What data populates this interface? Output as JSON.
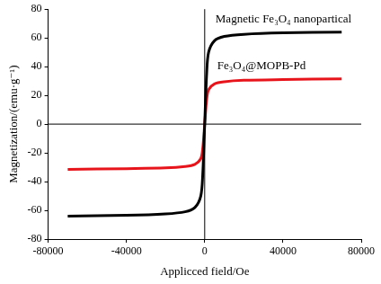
{
  "chart_data": {
    "type": "line",
    "x_label": "Applicced field/Oe",
    "y_label": "Magnetization/(emu·g⁻¹)",
    "x": [
      -70000,
      -40000,
      -20000,
      -10000,
      -5000,
      -2000,
      -1000,
      0,
      1000,
      2000,
      5000,
      10000,
      20000,
      40000,
      70000
    ],
    "series": [
      {
        "name": "Magnetic Fe₃O₄ nanopartical",
        "color": "#000000",
        "values": [
          -64,
          -63.5,
          -62.5,
          -61,
          -58,
          -50,
          -35,
          0,
          35,
          50,
          58,
          61,
          62.5,
          63.5,
          64
        ]
      },
      {
        "name": "Fe₃O₄@MOPB-Pd",
        "color": "#e8141c",
        "values": [
          -31.5,
          -31,
          -30.5,
          -29.5,
          -28,
          -24,
          -17,
          0,
          17,
          24,
          28,
          29.5,
          30.5,
          31,
          31.5
        ]
      }
    ],
    "xlim": [
      -80000,
      80000
    ],
    "xticks": [
      -80000,
      -40000,
      0,
      40000,
      80000
    ],
    "ylim": [
      -80,
      80
    ],
    "yticks": [
      -80,
      -60,
      -40,
      -20,
      0,
      20,
      40,
      60,
      80
    ],
    "grid": false
  }
}
